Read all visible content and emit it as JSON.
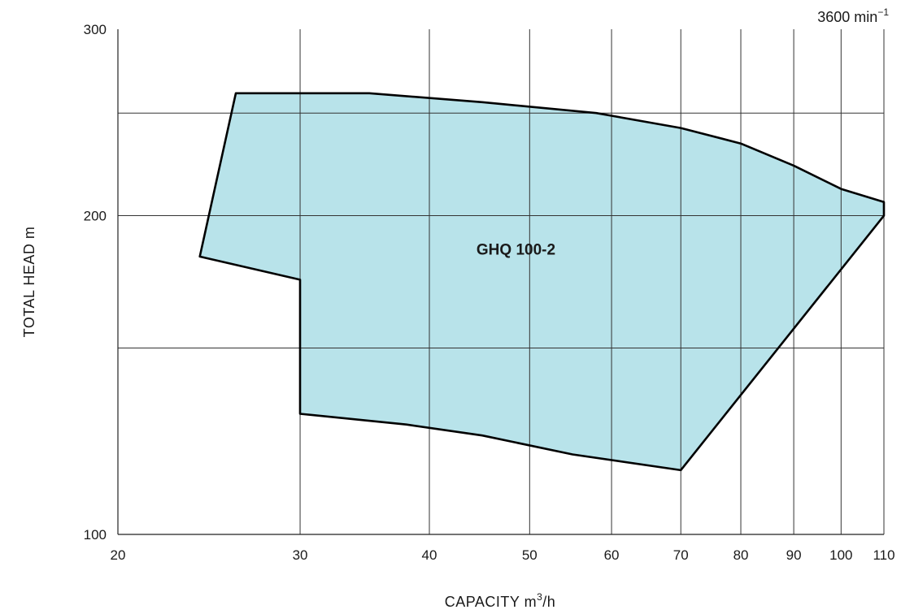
{
  "chart_data": {
    "type": "area",
    "speed_label": {
      "value": "3600 min",
      "superscript": "−1"
    },
    "xlabel": {
      "text": "CAPACITY  m",
      "superscript": "3",
      "suffix": "/h"
    },
    "ylabel": "TOTAL HEAD  m",
    "x_scale": "log",
    "y_scale": "log",
    "xlim": [
      20,
      110
    ],
    "ylim": [
      100,
      300
    ],
    "x_ticks": [
      20,
      30,
      40,
      50,
      60,
      70,
      80,
      90,
      100,
      110
    ],
    "x_tick_labels": [
      "20",
      "30",
      "40",
      "50",
      "60",
      "70",
      "80",
      "90",
      "100",
      "110"
    ],
    "x_gridlines": [
      30,
      40,
      50,
      60,
      70,
      80,
      90,
      100,
      110
    ],
    "y_ticks": [
      100,
      200,
      300
    ],
    "y_tick_labels": [
      "100",
      "200",
      "300"
    ],
    "y_gridlines": [
      150,
      200,
      250
    ],
    "grid": true,
    "fill_color": "#b8e3ea",
    "outline_color": "#000000",
    "grid_color": "#333333",
    "series": [
      {
        "name": "GHQ 100-2",
        "points": [
          [
            26,
            261
          ],
          [
            35,
            261
          ],
          [
            45,
            256
          ],
          [
            58,
            250
          ],
          [
            70,
            242
          ],
          [
            80,
            234
          ],
          [
            90,
            223
          ],
          [
            100,
            212
          ],
          [
            110,
            206
          ],
          [
            110,
            200
          ],
          [
            70,
            115
          ],
          [
            55,
            119
          ],
          [
            45,
            124
          ],
          [
            38,
            127
          ],
          [
            30,
            130
          ],
          [
            30,
            174
          ],
          [
            24,
            183
          ]
        ]
      }
    ]
  }
}
